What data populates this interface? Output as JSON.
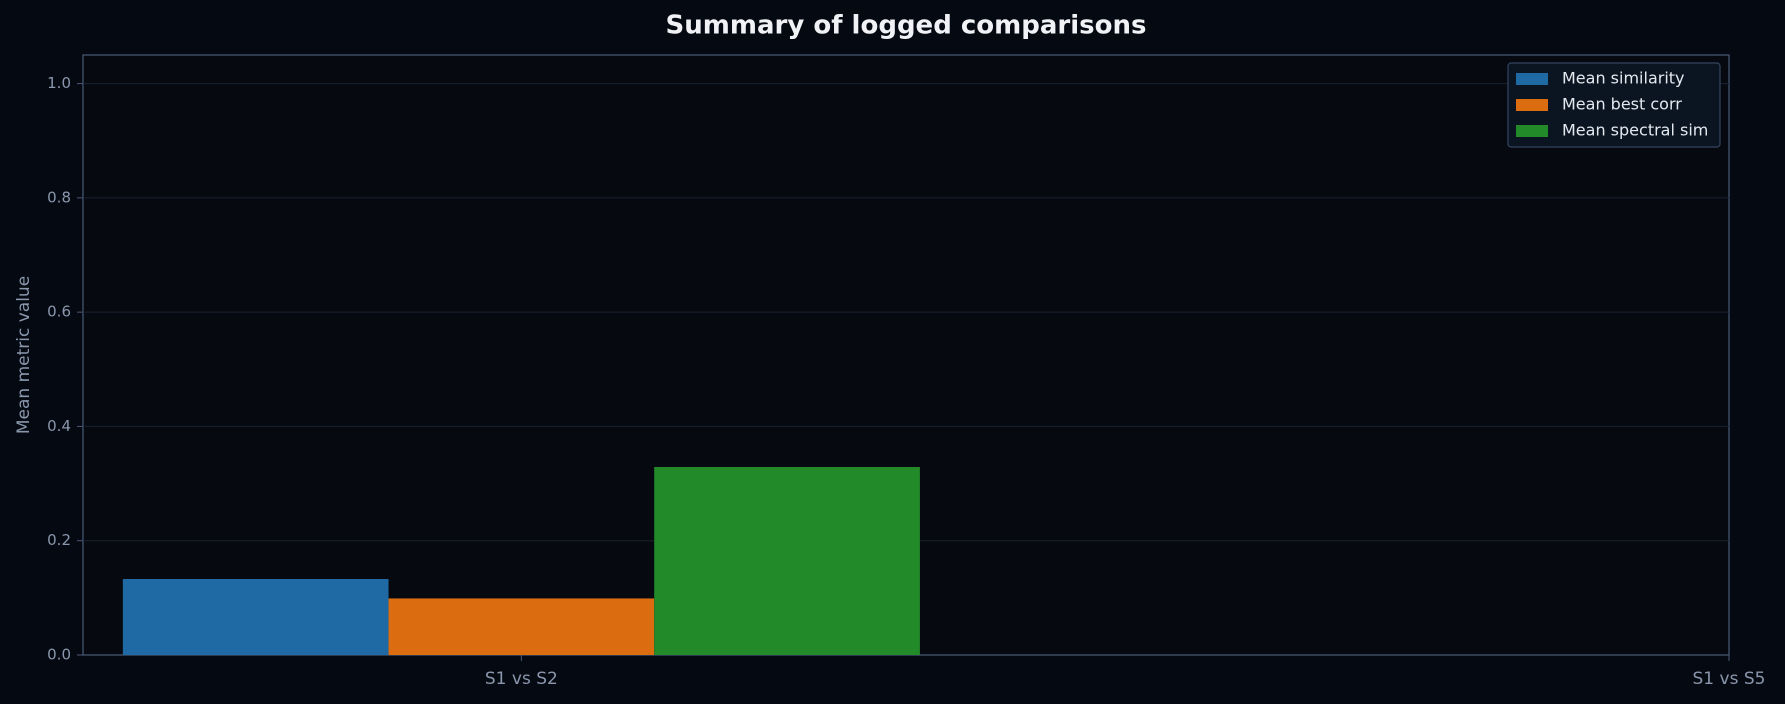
{
  "chart_data": {
    "type": "bar",
    "title": "Summary of logged comparisons",
    "y_label": "Mean metric value",
    "categories": [
      "S1 vs S2",
      "S1 vs S5"
    ],
    "series": [
      {
        "name": "Mean similarity",
        "color": "#1f6aa5",
        "values": [
          0.133,
          null
        ]
      },
      {
        "name": "Mean best corr",
        "color": "#dc6c10",
        "values": [
          0.099,
          null
        ]
      },
      {
        "name": "Mean spectral sim",
        "color": "#238a2a",
        "values": [
          0.329,
          null
        ]
      }
    ],
    "xlim": [
      -0.363,
      1
    ],
    "ylim": [
      0,
      1.05
    ],
    "yticks": [
      {
        "value": 0,
        "label": "0.0"
      },
      0.2,
      0.4,
      0.6,
      0.8,
      {
        "value": 1,
        "label": "1.0"
      }
    ],
    "grid": true,
    "legend": "upper right"
  }
}
